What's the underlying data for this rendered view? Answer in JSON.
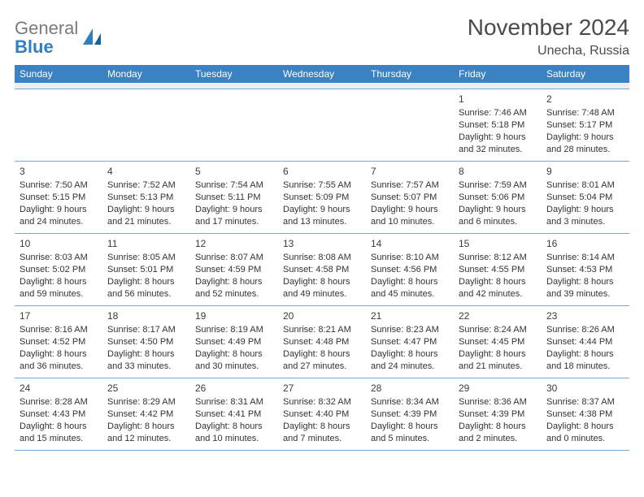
{
  "brand": {
    "part1": "General",
    "part2": "Blue"
  },
  "title": "November 2024",
  "location": "Unecha, Russia",
  "colors": {
    "header_bg": "#3a82c4",
    "divider": "#7aa8d0",
    "logo_gray": "#7a7a7a",
    "logo_blue": "#2f80c2",
    "text": "#333333"
  },
  "weekdays": [
    "Sunday",
    "Monday",
    "Tuesday",
    "Wednesday",
    "Thursday",
    "Friday",
    "Saturday"
  ],
  "weeks": [
    [
      null,
      null,
      null,
      null,
      null,
      {
        "n": "1",
        "sr": "7:46 AM",
        "ss": "5:18 PM",
        "dl": "9 hours and 32 minutes."
      },
      {
        "n": "2",
        "sr": "7:48 AM",
        "ss": "5:17 PM",
        "dl": "9 hours and 28 minutes."
      }
    ],
    [
      {
        "n": "3",
        "sr": "7:50 AM",
        "ss": "5:15 PM",
        "dl": "9 hours and 24 minutes."
      },
      {
        "n": "4",
        "sr": "7:52 AM",
        "ss": "5:13 PM",
        "dl": "9 hours and 21 minutes."
      },
      {
        "n": "5",
        "sr": "7:54 AM",
        "ss": "5:11 PM",
        "dl": "9 hours and 17 minutes."
      },
      {
        "n": "6",
        "sr": "7:55 AM",
        "ss": "5:09 PM",
        "dl": "9 hours and 13 minutes."
      },
      {
        "n": "7",
        "sr": "7:57 AM",
        "ss": "5:07 PM",
        "dl": "9 hours and 10 minutes."
      },
      {
        "n": "8",
        "sr": "7:59 AM",
        "ss": "5:06 PM",
        "dl": "9 hours and 6 minutes."
      },
      {
        "n": "9",
        "sr": "8:01 AM",
        "ss": "5:04 PM",
        "dl": "9 hours and 3 minutes."
      }
    ],
    [
      {
        "n": "10",
        "sr": "8:03 AM",
        "ss": "5:02 PM",
        "dl": "8 hours and 59 minutes."
      },
      {
        "n": "11",
        "sr": "8:05 AM",
        "ss": "5:01 PM",
        "dl": "8 hours and 56 minutes."
      },
      {
        "n": "12",
        "sr": "8:07 AM",
        "ss": "4:59 PM",
        "dl": "8 hours and 52 minutes."
      },
      {
        "n": "13",
        "sr": "8:08 AM",
        "ss": "4:58 PM",
        "dl": "8 hours and 49 minutes."
      },
      {
        "n": "14",
        "sr": "8:10 AM",
        "ss": "4:56 PM",
        "dl": "8 hours and 45 minutes."
      },
      {
        "n": "15",
        "sr": "8:12 AM",
        "ss": "4:55 PM",
        "dl": "8 hours and 42 minutes."
      },
      {
        "n": "16",
        "sr": "8:14 AM",
        "ss": "4:53 PM",
        "dl": "8 hours and 39 minutes."
      }
    ],
    [
      {
        "n": "17",
        "sr": "8:16 AM",
        "ss": "4:52 PM",
        "dl": "8 hours and 36 minutes."
      },
      {
        "n": "18",
        "sr": "8:17 AM",
        "ss": "4:50 PM",
        "dl": "8 hours and 33 minutes."
      },
      {
        "n": "19",
        "sr": "8:19 AM",
        "ss": "4:49 PM",
        "dl": "8 hours and 30 minutes."
      },
      {
        "n": "20",
        "sr": "8:21 AM",
        "ss": "4:48 PM",
        "dl": "8 hours and 27 minutes."
      },
      {
        "n": "21",
        "sr": "8:23 AM",
        "ss": "4:47 PM",
        "dl": "8 hours and 24 minutes."
      },
      {
        "n": "22",
        "sr": "8:24 AM",
        "ss": "4:45 PM",
        "dl": "8 hours and 21 minutes."
      },
      {
        "n": "23",
        "sr": "8:26 AM",
        "ss": "4:44 PM",
        "dl": "8 hours and 18 minutes."
      }
    ],
    [
      {
        "n": "24",
        "sr": "8:28 AM",
        "ss": "4:43 PM",
        "dl": "8 hours and 15 minutes."
      },
      {
        "n": "25",
        "sr": "8:29 AM",
        "ss": "4:42 PM",
        "dl": "8 hours and 12 minutes."
      },
      {
        "n": "26",
        "sr": "8:31 AM",
        "ss": "4:41 PM",
        "dl": "8 hours and 10 minutes."
      },
      {
        "n": "27",
        "sr": "8:32 AM",
        "ss": "4:40 PM",
        "dl": "8 hours and 7 minutes."
      },
      {
        "n": "28",
        "sr": "8:34 AM",
        "ss": "4:39 PM",
        "dl": "8 hours and 5 minutes."
      },
      {
        "n": "29",
        "sr": "8:36 AM",
        "ss": "4:39 PM",
        "dl": "8 hours and 2 minutes."
      },
      {
        "n": "30",
        "sr": "8:37 AM",
        "ss": "4:38 PM",
        "dl": "8 hours and 0 minutes."
      }
    ]
  ],
  "labels": {
    "sunrise_prefix": "Sunrise: ",
    "sunset_prefix": "Sunset: ",
    "daylight_prefix": "Daylight: "
  }
}
